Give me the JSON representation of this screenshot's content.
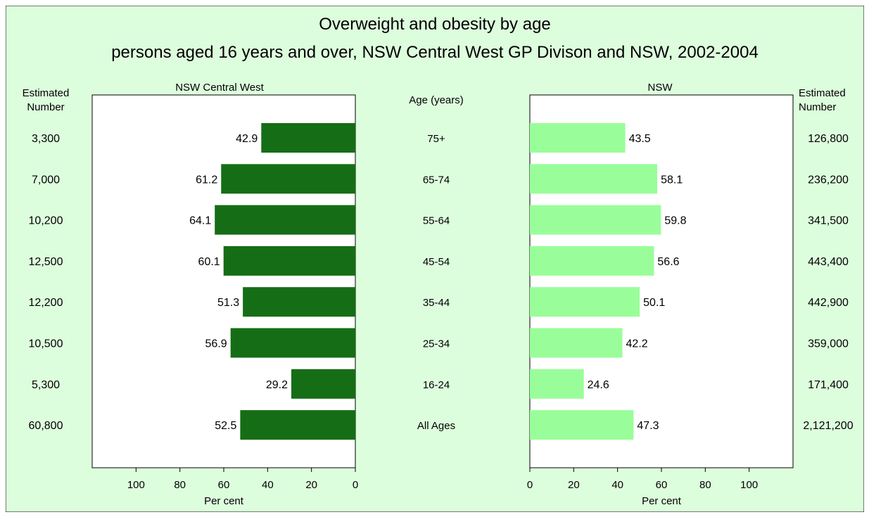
{
  "title_line1": "Overweight and obesity by age",
  "title_line2": "persons aged 16 years and over, NSW Central West GP Divison and NSW, 2002-2004",
  "colors": {
    "background": "#ddfedd",
    "left_bar": "#156e15",
    "right_bar": "#99fe99"
  },
  "chart_data": {
    "type": "bar",
    "orientation": "horizontal",
    "categories": [
      "75+",
      "65-74",
      "55-64",
      "45-54",
      "35-44",
      "25-34",
      "16-24",
      "All Ages"
    ],
    "category_axis_label": "Age (years)",
    "estimated_number_label_line1": "Estimated",
    "estimated_number_label_line2": "Number",
    "x_axis_label": "Per cent",
    "xlim": [
      0,
      120
    ],
    "ticks": [
      0,
      20,
      40,
      60,
      80,
      100
    ],
    "series": [
      {
        "name": "NSW Central West",
        "side": "left",
        "values": [
          42.9,
          61.2,
          64.1,
          60.1,
          51.3,
          56.9,
          29.2,
          52.5
        ],
        "value_labels": [
          "42.9",
          "61.2",
          "64.1",
          "60.1",
          "51.3",
          "56.9",
          "29.2",
          "52.5"
        ],
        "estimated_numbers": [
          "3,300",
          "7,000",
          "10,200",
          "12,500",
          "12,200",
          "10,500",
          "5,300",
          "60,800"
        ]
      },
      {
        "name": "NSW",
        "side": "right",
        "values": [
          43.5,
          58.1,
          59.8,
          56.6,
          50.1,
          42.2,
          24.6,
          47.3
        ],
        "value_labels": [
          "43.5",
          "58.1",
          "59.8",
          "56.6",
          "50.1",
          "42.2",
          "24.6",
          "47.3"
        ],
        "estimated_numbers": [
          "126,800",
          "236,200",
          "341,500",
          "443,400",
          "442,900",
          "359,000",
          "171,400",
          "2,121,200"
        ]
      }
    ]
  }
}
